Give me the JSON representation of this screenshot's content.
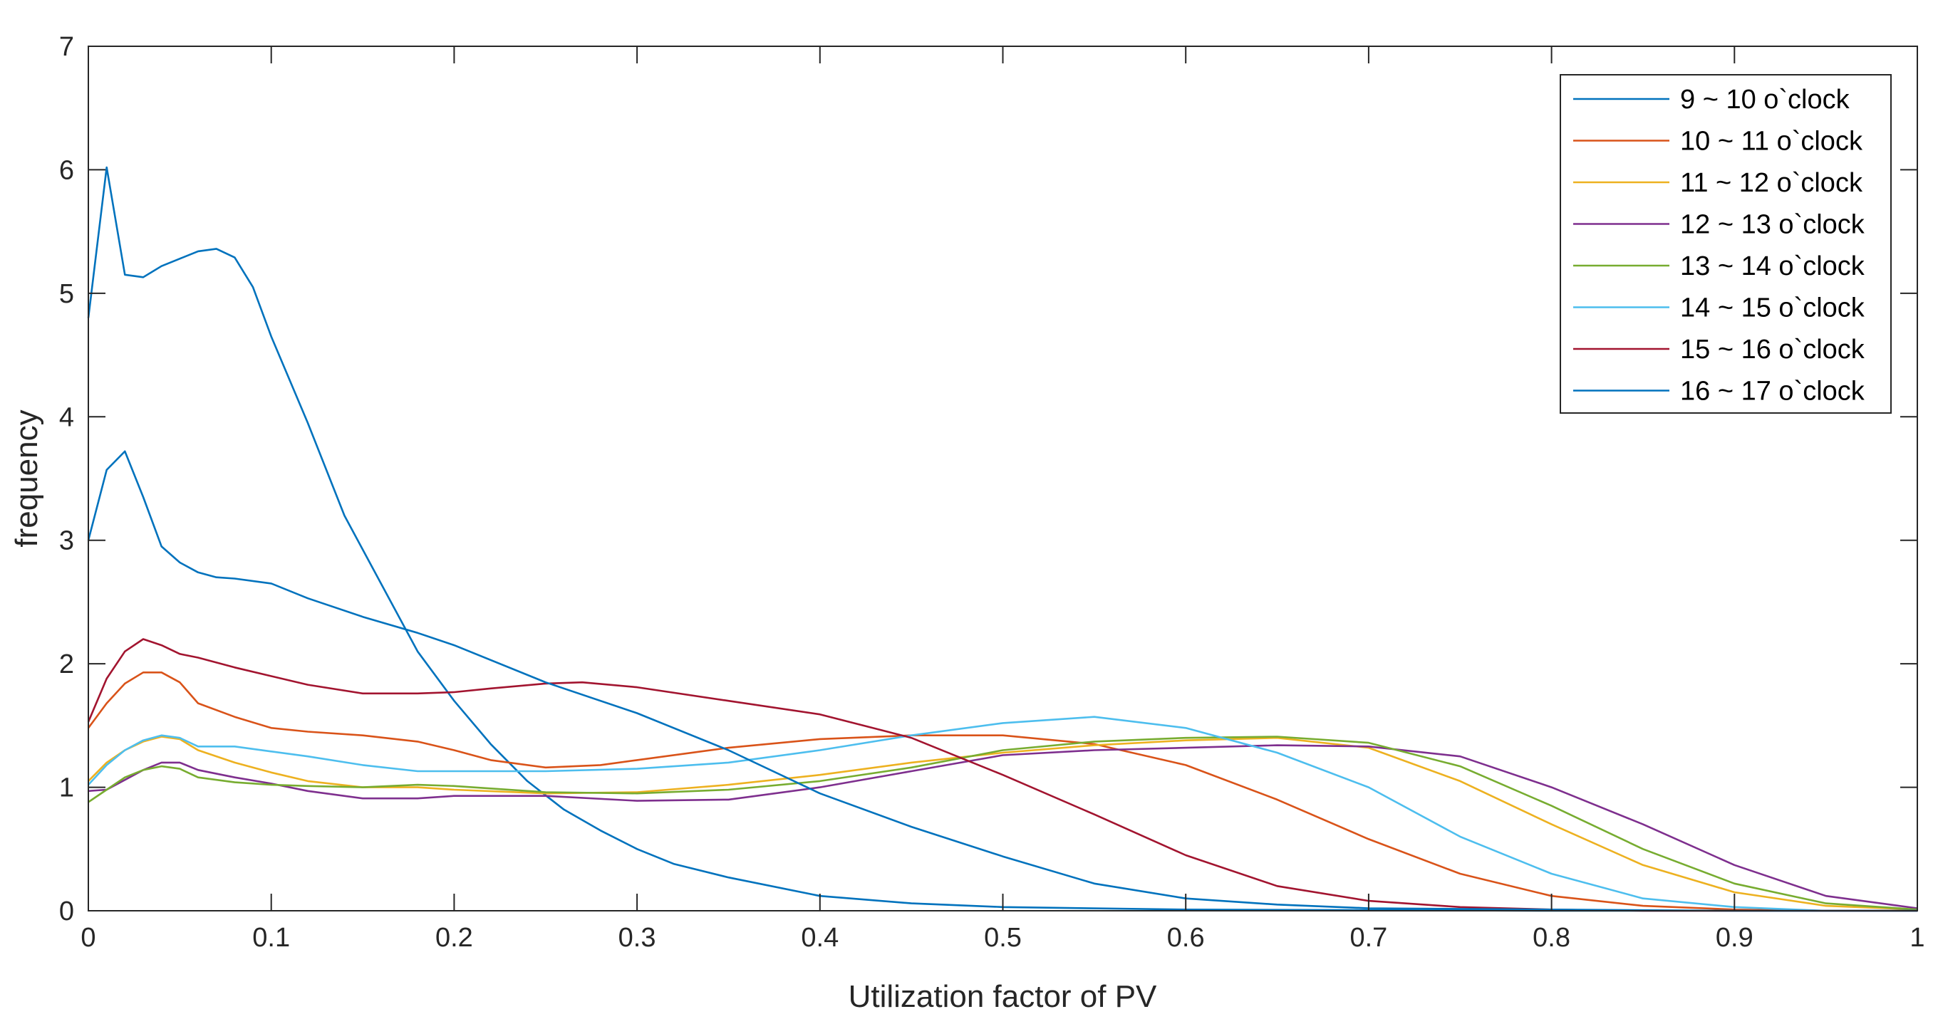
{
  "chart_data": {
    "type": "line",
    "title": "",
    "xlabel": "Utilization factor of PV",
    "ylabel": "frequency",
    "xlim": [
      0,
      1
    ],
    "ylim": [
      0,
      7
    ],
    "xticks": [
      0,
      0.1,
      0.2,
      0.3,
      0.4,
      0.5,
      0.6,
      0.7,
      0.8,
      0.9,
      1
    ],
    "xtick_labels": [
      "0",
      "0.1",
      "0.2",
      "0.3",
      "0.4",
      "0.5",
      "0.6",
      "0.7",
      "0.8",
      "0.9",
      "1"
    ],
    "yticks": [
      0,
      1,
      2,
      3,
      4,
      5,
      6,
      7
    ],
    "ytick_labels": [
      "0",
      "1",
      "2",
      "3",
      "4",
      "5",
      "6",
      "7"
    ],
    "grid": false,
    "legend_position": "top-right",
    "series": [
      {
        "name": "9 ~ 10 o`clock",
        "color": "#0072BD",
        "x": [
          0,
          0.01,
          0.02,
          0.03,
          0.04,
          0.05,
          0.06,
          0.07,
          0.08,
          0.09,
          0.1,
          0.12,
          0.14,
          0.16,
          0.18,
          0.2,
          0.22,
          0.24,
          0.26,
          0.28,
          0.3,
          0.32,
          0.35,
          0.4,
          0.45,
          0.5,
          0.6,
          0.7,
          0.8,
          0.9,
          1.0
        ],
        "y": [
          4.8,
          6.02,
          5.15,
          5.13,
          5.22,
          5.28,
          5.34,
          5.36,
          5.29,
          5.05,
          4.65,
          3.95,
          3.2,
          2.65,
          2.1,
          1.7,
          1.35,
          1.05,
          0.82,
          0.65,
          0.5,
          0.38,
          0.27,
          0.12,
          0.06,
          0.03,
          0.01,
          0.005,
          0,
          0,
          0
        ]
      },
      {
        "name": "10 ~ 11 o`clock",
        "color": "#D95319",
        "x": [
          0,
          0.01,
          0.02,
          0.03,
          0.04,
          0.05,
          0.06,
          0.08,
          0.1,
          0.12,
          0.15,
          0.18,
          0.2,
          0.22,
          0.25,
          0.28,
          0.3,
          0.35,
          0.4,
          0.45,
          0.5,
          0.55,
          0.6,
          0.65,
          0.7,
          0.75,
          0.8,
          0.85,
          0.9,
          0.95,
          1.0
        ],
        "y": [
          1.48,
          1.68,
          1.84,
          1.93,
          1.93,
          1.85,
          1.68,
          1.57,
          1.48,
          1.45,
          1.42,
          1.37,
          1.3,
          1.22,
          1.16,
          1.18,
          1.22,
          1.32,
          1.39,
          1.42,
          1.42,
          1.35,
          1.18,
          0.9,
          0.58,
          0.3,
          0.12,
          0.04,
          0.01,
          0,
          0
        ]
      },
      {
        "name": "11 ~ 12 o`clock",
        "color": "#EDB120",
        "x": [
          0,
          0.01,
          0.02,
          0.03,
          0.04,
          0.05,
          0.06,
          0.08,
          0.1,
          0.12,
          0.15,
          0.18,
          0.2,
          0.25,
          0.3,
          0.35,
          0.4,
          0.45,
          0.5,
          0.55,
          0.6,
          0.65,
          0.7,
          0.75,
          0.8,
          0.85,
          0.9,
          0.95,
          1.0
        ],
        "y": [
          1.05,
          1.2,
          1.3,
          1.37,
          1.41,
          1.39,
          1.3,
          1.2,
          1.12,
          1.05,
          1.0,
          1.0,
          0.98,
          0.95,
          0.96,
          1.02,
          1.1,
          1.2,
          1.28,
          1.34,
          1.38,
          1.4,
          1.32,
          1.05,
          0.7,
          0.37,
          0.15,
          0.04,
          0.01
        ]
      },
      {
        "name": "12 ~ 13 o`clock",
        "color": "#7E2F8E",
        "x": [
          0,
          0.01,
          0.02,
          0.03,
          0.04,
          0.05,
          0.06,
          0.08,
          0.1,
          0.12,
          0.15,
          0.18,
          0.2,
          0.25,
          0.3,
          0.35,
          0.4,
          0.45,
          0.5,
          0.55,
          0.6,
          0.65,
          0.7,
          0.75,
          0.8,
          0.85,
          0.9,
          0.95,
          1.0
        ],
        "y": [
          0.97,
          0.98,
          1.06,
          1.14,
          1.2,
          1.2,
          1.14,
          1.08,
          1.03,
          0.97,
          0.91,
          0.91,
          0.93,
          0.93,
          0.89,
          0.9,
          1.0,
          1.13,
          1.26,
          1.3,
          1.32,
          1.34,
          1.33,
          1.25,
          1.0,
          0.7,
          0.37,
          0.12,
          0.02
        ]
      },
      {
        "name": "13 ~ 14 o`clock",
        "color": "#77AC30",
        "x": [
          0,
          0.01,
          0.02,
          0.03,
          0.04,
          0.05,
          0.06,
          0.08,
          0.1,
          0.12,
          0.15,
          0.18,
          0.2,
          0.25,
          0.3,
          0.35,
          0.4,
          0.45,
          0.5,
          0.55,
          0.6,
          0.65,
          0.7,
          0.75,
          0.8,
          0.85,
          0.9,
          0.95,
          1.0
        ],
        "y": [
          0.88,
          0.98,
          1.08,
          1.14,
          1.17,
          1.15,
          1.08,
          1.04,
          1.02,
          1.01,
          1.0,
          1.02,
          1.01,
          0.96,
          0.95,
          0.98,
          1.05,
          1.16,
          1.3,
          1.37,
          1.4,
          1.41,
          1.36,
          1.17,
          0.85,
          0.5,
          0.22,
          0.06,
          0.01
        ]
      },
      {
        "name": "14 ~ 15 o`clock",
        "color": "#4DBEEE",
        "x": [
          0,
          0.01,
          0.02,
          0.03,
          0.04,
          0.05,
          0.06,
          0.08,
          0.1,
          0.12,
          0.15,
          0.18,
          0.2,
          0.25,
          0.3,
          0.35,
          0.4,
          0.45,
          0.5,
          0.55,
          0.6,
          0.65,
          0.7,
          0.75,
          0.8,
          0.85,
          0.9,
          0.95,
          1.0
        ],
        "y": [
          1.02,
          1.18,
          1.3,
          1.38,
          1.42,
          1.4,
          1.33,
          1.33,
          1.29,
          1.25,
          1.18,
          1.13,
          1.13,
          1.13,
          1.15,
          1.2,
          1.3,
          1.42,
          1.52,
          1.57,
          1.48,
          1.28,
          1.0,
          0.6,
          0.3,
          0.1,
          0.03,
          0,
          0
        ]
      },
      {
        "name": "15 ~ 16 o`clock",
        "color": "#A2142F",
        "x": [
          0,
          0.01,
          0.02,
          0.03,
          0.04,
          0.05,
          0.06,
          0.08,
          0.1,
          0.12,
          0.15,
          0.18,
          0.2,
          0.22,
          0.25,
          0.27,
          0.3,
          0.35,
          0.4,
          0.45,
          0.5,
          0.55,
          0.6,
          0.65,
          0.7,
          0.75,
          0.8,
          0.85,
          0.9,
          1.0
        ],
        "y": [
          1.53,
          1.88,
          2.1,
          2.2,
          2.15,
          2.08,
          2.05,
          1.97,
          1.9,
          1.83,
          1.76,
          1.76,
          1.77,
          1.8,
          1.84,
          1.85,
          1.81,
          1.7,
          1.59,
          1.4,
          1.1,
          0.78,
          0.45,
          0.2,
          0.08,
          0.03,
          0.01,
          0,
          0,
          0
        ]
      },
      {
        "name": "16 ~ 17 o`clock",
        "color": "#0072BD",
        "x": [
          0,
          0.01,
          0.02,
          0.03,
          0.04,
          0.05,
          0.06,
          0.07,
          0.08,
          0.1,
          0.12,
          0.15,
          0.18,
          0.2,
          0.25,
          0.3,
          0.35,
          0.4,
          0.45,
          0.5,
          0.55,
          0.6,
          0.65,
          0.7,
          0.8,
          0.9,
          1.0
        ],
        "y": [
          3.0,
          3.57,
          3.72,
          3.35,
          2.95,
          2.82,
          2.74,
          2.7,
          2.69,
          2.65,
          2.53,
          2.38,
          2.25,
          2.15,
          1.85,
          1.6,
          1.3,
          0.95,
          0.68,
          0.44,
          0.22,
          0.1,
          0.05,
          0.02,
          0.01,
          0,
          0
        ]
      }
    ]
  }
}
